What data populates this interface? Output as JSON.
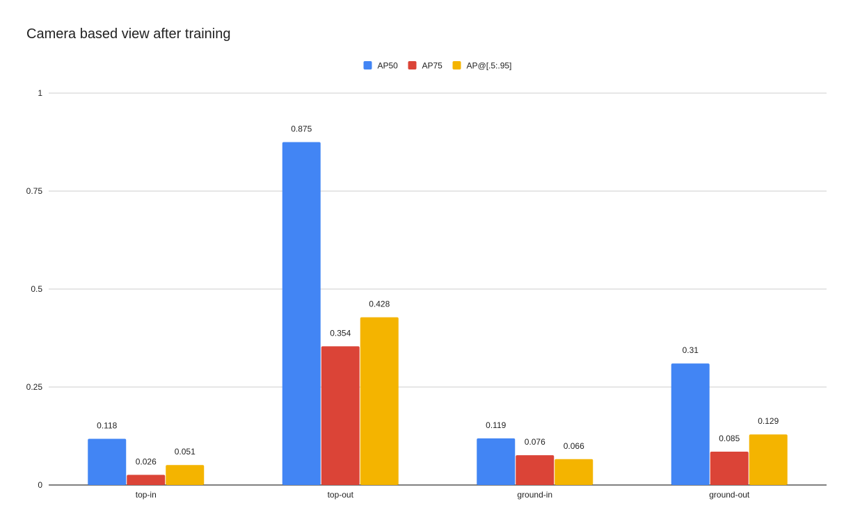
{
  "chart_data": {
    "type": "bar",
    "title": "Camera based view after training",
    "xlabel": "",
    "ylabel": "",
    "categories": [
      "top-in",
      "top-out",
      "ground-in",
      "ground-out"
    ],
    "series": [
      {
        "name": "AP50",
        "color": "#4285f4",
        "values": [
          0.118,
          0.875,
          0.119,
          0.31
        ],
        "labels": [
          "0.118",
          "0.875",
          "0.119",
          "0.31"
        ]
      },
      {
        "name": "AP75",
        "color": "#db4437",
        "values": [
          0.026,
          0.354,
          0.076,
          0.085
        ],
        "labels": [
          "0.026",
          "0.354",
          "0.076",
          "0.085"
        ]
      },
      {
        "name": "AP@[.5:.95]",
        "color": "#f4b400",
        "values": [
          0.051,
          0.428,
          0.066,
          0.129
        ],
        "labels": [
          "0.051",
          "0.428",
          "0.066",
          "0.129"
        ]
      }
    ],
    "ylim": [
      0,
      1
    ],
    "yticks": [
      0,
      0.25,
      0.5,
      0.75,
      1
    ],
    "ytick_labels": [
      "0",
      "0.25",
      "0.5",
      "0.75",
      "1"
    ],
    "grid": true,
    "legend_position": "top-center"
  }
}
